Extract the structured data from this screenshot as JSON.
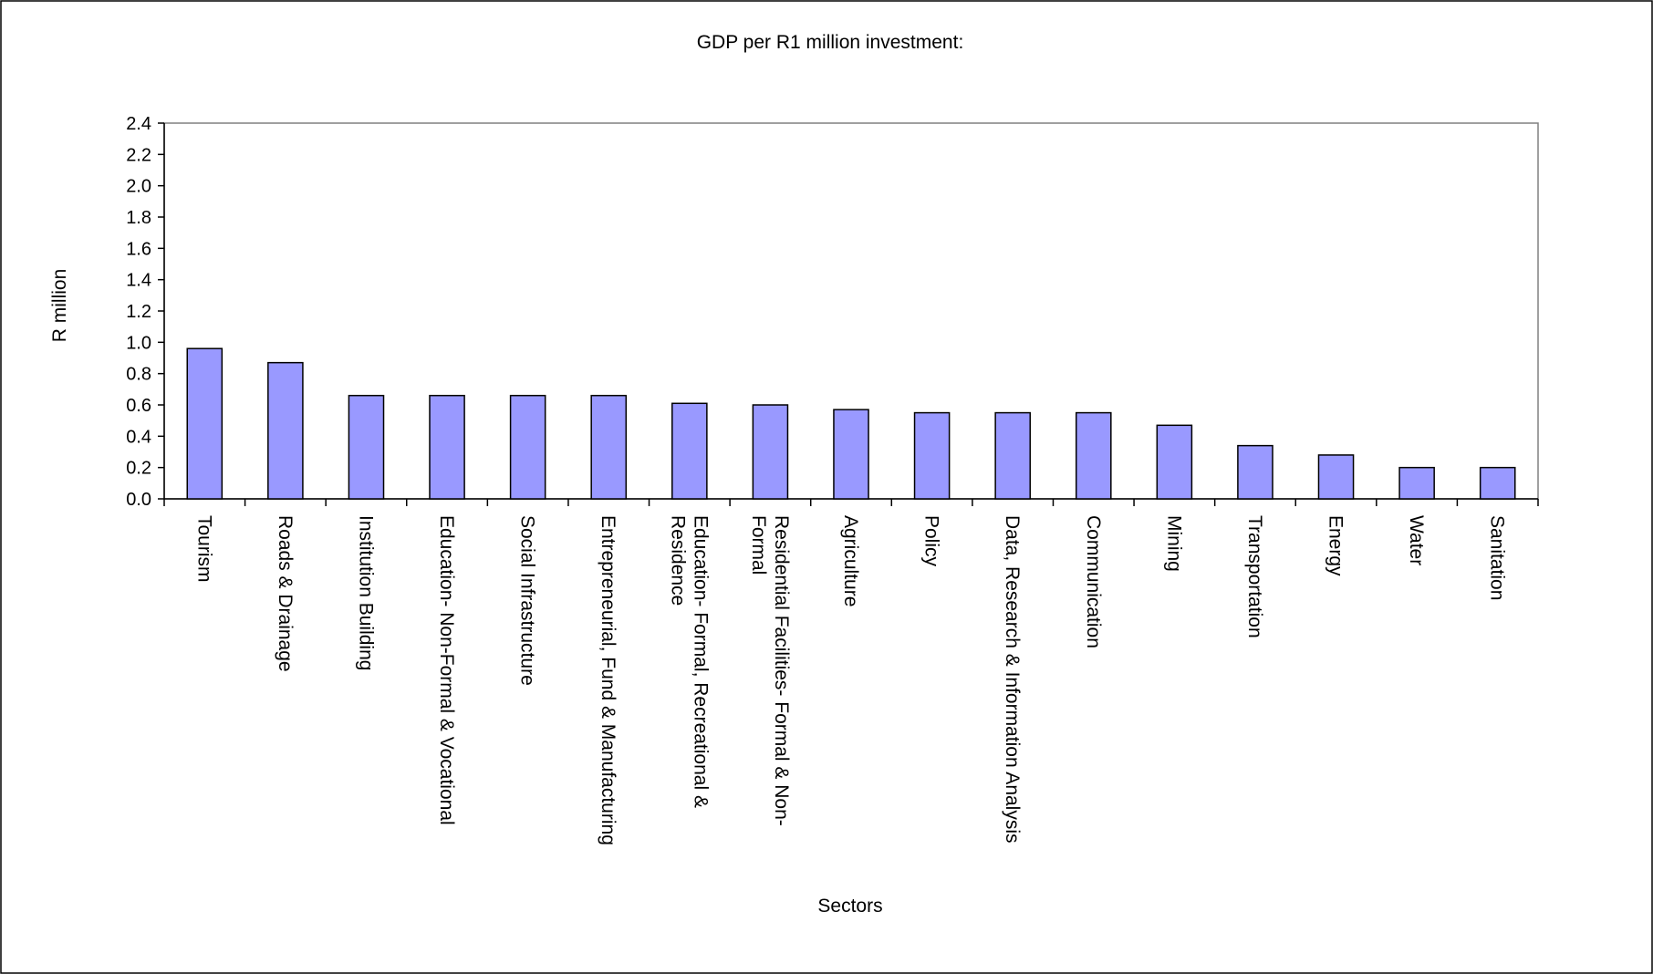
{
  "chart_data": {
    "type": "bar",
    "title": "GDP per R1 million investment:",
    "xlabel": "Sectors",
    "ylabel": "R million",
    "ylim": [
      0,
      2.4
    ],
    "yticks": [
      "0.0",
      "0.2",
      "0.4",
      "0.6",
      "0.8",
      "1.0",
      "1.2",
      "1.4",
      "1.6",
      "1.8",
      "2.0",
      "2.2",
      "2.4"
    ],
    "grid": false,
    "legend": "none",
    "bar_color": "#9999ff",
    "categories": [
      [
        "Tourism"
      ],
      [
        "Roads & Drainage"
      ],
      [
        "Institution Building"
      ],
      [
        "Education- Non-Formal & Vocational"
      ],
      [
        "Social Infrastructure"
      ],
      [
        "Entrepreneurial, Fund & Manufacturing"
      ],
      [
        "Education- Formal, Recreational &",
        "Residence"
      ],
      [
        "Residential Facilities- Formal & Non-",
        "Formal"
      ],
      [
        "Agriculture"
      ],
      [
        "Policy"
      ],
      [
        "Data, Research & Information Analysis"
      ],
      [
        "Communication"
      ],
      [
        "Mining"
      ],
      [
        "Transportation"
      ],
      [
        "Energy"
      ],
      [
        "Water"
      ],
      [
        "Sanitation"
      ]
    ],
    "values": [
      0.96,
      0.87,
      0.66,
      0.66,
      0.66,
      0.66,
      0.61,
      0.6,
      0.57,
      0.55,
      0.55,
      0.55,
      0.47,
      0.34,
      0.28,
      0.2,
      0.2
    ]
  }
}
